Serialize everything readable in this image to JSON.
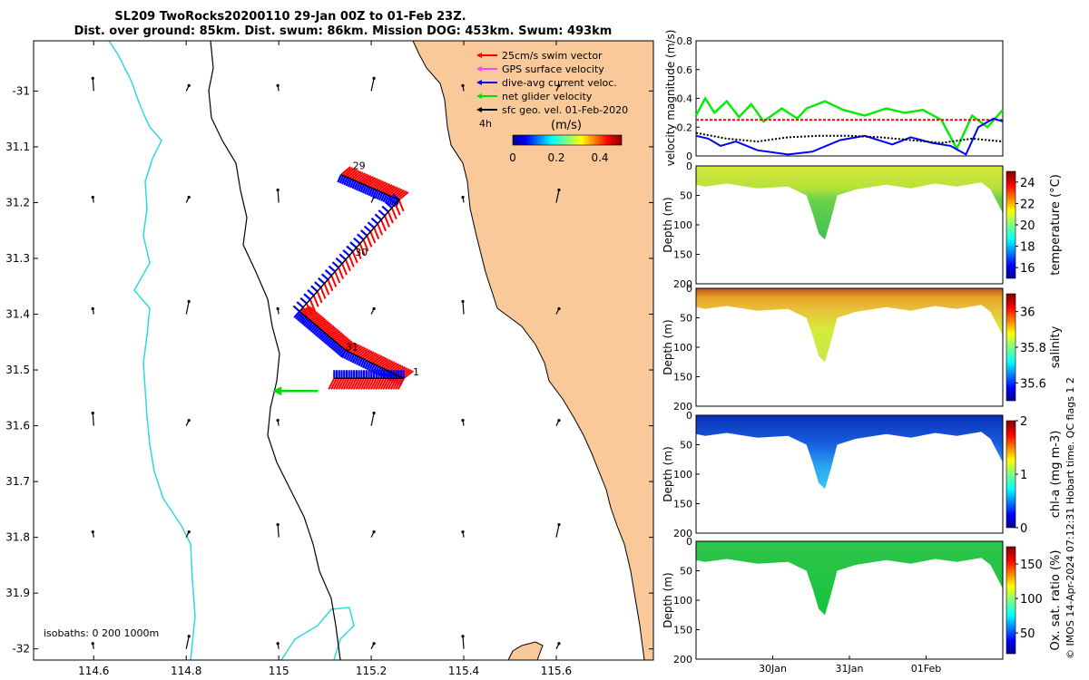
{
  "title": {
    "line1": "SL209 TwoRocks20200110 29-Jan 00Z to 01-Feb 23Z.",
    "line2": "Dist. over ground: 85km. Dist. swum: 86km. Mission DOG: 453km. Swum: 493km"
  },
  "colors": {
    "land": "#f9c999",
    "coast": "#000000",
    "isobath_200": "#000000",
    "isobath_0": "#2fd9e0",
    "swim": "#ff0000",
    "gps": "#ff44ff",
    "dive": "#0000ff",
    "net": "#00dd00",
    "geo": "#000000"
  },
  "chart_data": [
    {
      "type": "scatter",
      "panel": "map",
      "x_ticks": [
        "114.6",
        "114.8",
        "115",
        "115.2",
        "115.4",
        "115.6"
      ],
      "y_ticks": [
        "-31",
        "31.1",
        "31.2",
        "31.3",
        "31.4",
        "31.5",
        "31.6",
        "31.7",
        "31.8",
        "31.9",
        "-32"
      ],
      "xlim": [
        114.47,
        115.81
      ],
      "ylim": [
        -32.02,
        -30.91
      ],
      "legend": [
        {
          "label": "25cm/s swim vector",
          "color": "#ff0000"
        },
        {
          "label": "GPS surface velocity",
          "color": "#ff44ff"
        },
        {
          "label": "dive-avg current veloc.",
          "color": "#0000ff"
        },
        {
          "label": "net glider velocity",
          "color": "#00dd00"
        },
        {
          "label": "sfc geo. vel. 01-Feb-2020",
          "color": "#000000"
        }
      ],
      "interval_label": "4h",
      "colorbar": {
        "title": "(m/s)",
        "ticks": [
          "0",
          "0.2",
          "0.4"
        ],
        "range": [
          0,
          0.5
        ]
      },
      "isobaths_label": "isobaths: 0   200  1000m",
      "track": [
        {
          "lon": 115.135,
          "lat": -31.15
        },
        {
          "lon": 115.26,
          "lat": -31.195
        },
        {
          "lon": 115.045,
          "lat": -31.395
        },
        {
          "lon": 115.145,
          "lat": -31.465
        },
        {
          "lon": 115.27,
          "lat": -31.515
        },
        {
          "lon": 115.12,
          "lat": -31.515
        }
      ],
      "day_labels": [
        {
          "text": "29",
          "lon": 115.16,
          "lat": -31.14
        },
        {
          "text": "30",
          "lon": 115.165,
          "lat": -31.295
        },
        {
          "text": "31",
          "lon": 115.145,
          "lat": -31.465
        },
        {
          "text": "1",
          "lon": 115.29,
          "lat": -31.51
        }
      ]
    },
    {
      "type": "line",
      "panel": "velocity",
      "ylabel": "velocity magnitude (m/s)",
      "ylim": [
        0,
        0.8
      ],
      "y_ticks": [
        "0",
        "0.2",
        "0.4",
        "0.6",
        "0.8"
      ],
      "xlim": [
        0,
        1
      ],
      "series": [
        {
          "color": "#00ee00",
          "x": [
            0,
            0.03,
            0.06,
            0.1,
            0.14,
            0.18,
            0.22,
            0.28,
            0.33,
            0.36,
            0.42,
            0.48,
            0.55,
            0.62,
            0.68,
            0.74,
            0.8,
            0.85,
            0.9,
            0.95,
            1
          ],
          "y": [
            0.28,
            0.4,
            0.3,
            0.38,
            0.27,
            0.36,
            0.24,
            0.33,
            0.26,
            0.33,
            0.38,
            0.32,
            0.28,
            0.33,
            0.3,
            0.32,
            0.25,
            0.05,
            0.28,
            0.2,
            0.32
          ]
        },
        {
          "color": "#ff0000",
          "x": [
            0,
            1
          ],
          "y": [
            0.25,
            0.25
          ]
        },
        {
          "color": "#0000ff",
          "x": [
            0,
            0.04,
            0.08,
            0.13,
            0.2,
            0.3,
            0.38,
            0.47,
            0.55,
            0.64,
            0.7,
            0.77,
            0.83,
            0.88,
            0.92,
            0.97,
            1
          ],
          "y": [
            0.14,
            0.12,
            0.07,
            0.1,
            0.04,
            0.01,
            0.03,
            0.11,
            0.14,
            0.08,
            0.13,
            0.09,
            0.07,
            0.01,
            0.2,
            0.26,
            0.24
          ]
        },
        {
          "color": "#000000",
          "x": [
            0,
            0.1,
            0.2,
            0.3,
            0.4,
            0.5,
            0.6,
            0.7,
            0.8,
            0.9,
            1
          ],
          "y": [
            0.16,
            0.12,
            0.1,
            0.13,
            0.14,
            0.14,
            0.13,
            0.11,
            0.09,
            0.12,
            0.1
          ]
        }
      ]
    },
    {
      "type": "heatmap",
      "panel": "temperature",
      "ylabel": "Depth (m)",
      "cblabel": "temperature (°C)",
      "cb_ticks": [
        "16",
        "18",
        "20",
        "22",
        "24"
      ],
      "cb_range": [
        15,
        25
      ],
      "ylim": [
        0,
        200
      ],
      "y_ticks": [
        "0",
        "50",
        "100",
        "150",
        "200"
      ],
      "surface_value": 21.5,
      "deep_value": 19.5
    },
    {
      "type": "heatmap",
      "panel": "salinity",
      "ylabel": "Depth (m)",
      "cblabel": "salinity",
      "cb_ticks": [
        "35.6",
        "35.8",
        "36"
      ],
      "cb_range": [
        35.5,
        36.1
      ],
      "ylim": [
        0,
        200
      ],
      "y_ticks": [
        "0",
        "50",
        "100",
        "150",
        "200"
      ],
      "surface_value": 36.0,
      "deep_value": 35.85
    },
    {
      "type": "heatmap",
      "panel": "chl-a",
      "ylabel": "Depth (m)",
      "cblabel": "chl-a (mg m-3)",
      "cb_ticks": [
        "0",
        "1",
        "2"
      ],
      "cb_range": [
        0,
        2
      ],
      "ylim": [
        0,
        200
      ],
      "y_ticks": [
        "0",
        "50",
        "100",
        "150",
        "200"
      ],
      "surface_value": 0.15,
      "deep_value": 0.5
    },
    {
      "type": "heatmap",
      "panel": "oxygen",
      "ylabel": "Depth (m)",
      "cblabel": "Ox. sat. ratio (%)",
      "cb_ticks": [
        "50",
        "100",
        "150"
      ],
      "cb_range": [
        20,
        175
      ],
      "ylim": [
        0,
        200
      ],
      "y_ticks": [
        "0",
        "50",
        "100",
        "150",
        "200"
      ],
      "x_ticks": [
        "30Jan",
        "31Jan",
        "01Feb"
      ],
      "surface_value": 95,
      "deep_value": 95
    }
  ],
  "sidebar_note": "© IMOS 14-Apr-2024 07:12:31 Hobart time. QC flags 1  2"
}
